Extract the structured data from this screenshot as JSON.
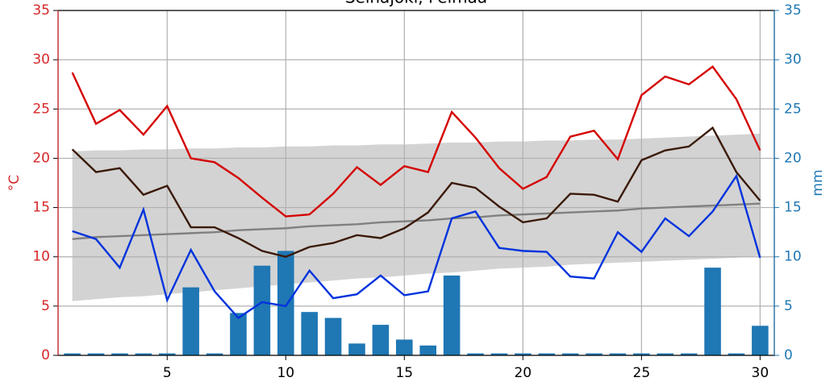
{
  "chart_data": {
    "type": "line",
    "title": "Seinäjoki, Pelmaa",
    "ylabel": "°C",
    "y2label": "mm",
    "x": [
      1,
      2,
      3,
      4,
      5,
      6,
      7,
      8,
      9,
      10,
      11,
      12,
      13,
      14,
      15,
      16,
      17,
      18,
      19,
      20,
      21,
      22,
      23,
      24,
      25,
      26,
      27,
      28,
      29,
      30
    ],
    "xlim": [
      0.4,
      30.6
    ],
    "xticks": [
      5,
      10,
      15,
      20,
      25,
      30
    ],
    "ylim": [
      0,
      35
    ],
    "yticks": [
      0,
      5,
      10,
      15,
      20,
      25,
      30,
      35
    ],
    "y2lim": [
      0,
      35
    ],
    "y2ticks": [
      0,
      5,
      10,
      15,
      20,
      25,
      30,
      35
    ],
    "grid": true,
    "left_color": "#d62728",
    "right_color": "#1f77b4",
    "band": {
      "color": "#d3d3d3",
      "upper": [
        20.7,
        20.8,
        20.8,
        20.9,
        20.9,
        21.0,
        21.0,
        21.1,
        21.1,
        21.2,
        21.2,
        21.3,
        21.3,
        21.4,
        21.4,
        21.5,
        21.6,
        21.6,
        21.7,
        21.7,
        21.8,
        21.8,
        21.9,
        21.9,
        22.0,
        22.1,
        22.2,
        22.3,
        22.4,
        22.5
      ],
      "lower": [
        5.5,
        5.7,
        5.9,
        6.0,
        6.2,
        6.4,
        6.6,
        6.8,
        7.0,
        7.2,
        7.4,
        7.6,
        7.8,
        7.9,
        8.1,
        8.3,
        8.4,
        8.6,
        8.8,
        8.9,
        9.0,
        9.2,
        9.3,
        9.4,
        9.5,
        9.6,
        9.7,
        9.8,
        9.9,
        10.1
      ]
    },
    "series": [
      {
        "type": "bar",
        "axis": "y2",
        "color": "#1f77b4",
        "values": [
          0.2,
          0.2,
          0.2,
          0.2,
          0.2,
          6.9,
          0.2,
          4.3,
          9.1,
          10.6,
          4.4,
          3.8,
          1.2,
          3.1,
          1.6,
          1.0,
          8.1,
          0.2,
          0.2,
          0.2,
          0.2,
          0.2,
          0.2,
          0.2,
          0.2,
          0.2,
          0.2,
          8.9,
          0.2,
          3.0
        ]
      },
      {
        "type": "line",
        "color": "#808080",
        "values": [
          11.8,
          12.0,
          12.1,
          12.2,
          12.3,
          12.4,
          12.5,
          12.7,
          12.8,
          12.9,
          13.1,
          13.2,
          13.3,
          13.5,
          13.6,
          13.7,
          13.9,
          14.0,
          14.2,
          14.3,
          14.4,
          14.5,
          14.6,
          14.7,
          14.9,
          15.0,
          15.1,
          15.2,
          15.3,
          15.4
        ]
      },
      {
        "type": "line",
        "color": "#d40000",
        "values": [
          28.7,
          23.5,
          24.9,
          22.4,
          25.3,
          20.0,
          19.6,
          18.0,
          16.0,
          14.1,
          14.3,
          16.4,
          19.1,
          17.3,
          19.2,
          18.6,
          24.7,
          22.1,
          19.0,
          16.9,
          18.1,
          22.2,
          22.8,
          19.9,
          26.4,
          28.3,
          27.5,
          29.3,
          26.0,
          20.8
        ]
      },
      {
        "type": "line",
        "color": "#3b1a08",
        "values": [
          20.9,
          18.6,
          19.0,
          16.3,
          17.2,
          13.0,
          13.0,
          11.9,
          10.6,
          10.0,
          11.0,
          11.4,
          12.2,
          11.9,
          12.9,
          14.5,
          17.5,
          17.0,
          15.1,
          13.5,
          13.9,
          16.4,
          16.3,
          15.6,
          19.8,
          20.8,
          21.2,
          23.1,
          18.6,
          15.7
        ]
      },
      {
        "type": "line",
        "color": "#0033dd",
        "values": [
          12.6,
          11.8,
          8.9,
          14.8,
          5.6,
          10.7,
          6.5,
          3.8,
          5.4,
          5.0,
          8.6,
          5.8,
          6.2,
          8.1,
          6.1,
          6.5,
          13.9,
          14.6,
          10.9,
          10.6,
          10.5,
          8.0,
          7.8,
          12.5,
          10.5,
          13.9,
          12.1,
          14.6,
          18.2,
          9.9
        ]
      }
    ]
  }
}
